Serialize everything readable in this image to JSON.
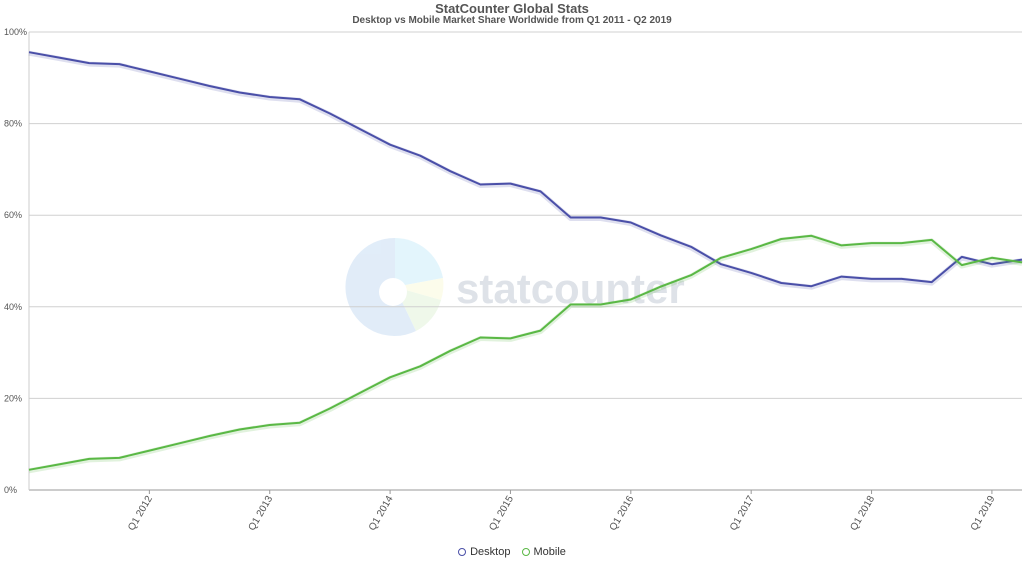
{
  "title": "StatCounter Global Stats",
  "subtitle": "Desktop vs Mobile Market Share Worldwide from Q1 2011 - Q2 2019",
  "watermark_text": "statcounter",
  "chart_data": {
    "type": "line",
    "x": [
      "Q1 2011",
      "Q2 2011",
      "Q3 2011",
      "Q4 2011",
      "Q1 2012",
      "Q2 2012",
      "Q3 2012",
      "Q4 2012",
      "Q1 2013",
      "Q2 2013",
      "Q3 2013",
      "Q4 2013",
      "Q1 2014",
      "Q2 2014",
      "Q3 2014",
      "Q4 2014",
      "Q1 2015",
      "Q2 2015",
      "Q3 2015",
      "Q4 2015",
      "Q1 2016",
      "Q2 2016",
      "Q3 2016",
      "Q4 2016",
      "Q1 2017",
      "Q2 2017",
      "Q3 2017",
      "Q4 2017",
      "Q1 2018",
      "Q2 2018",
      "Q3 2018",
      "Q4 2018",
      "Q1 2019",
      "Q2 2019"
    ],
    "x_tick_labels": [
      "Q1 2012",
      "Q1 2013",
      "Q1 2014",
      "Q1 2015",
      "Q1 2016",
      "Q1 2017",
      "Q1 2018",
      "Q1 2019"
    ],
    "y_tick_labels": [
      "0%",
      "20%",
      "40%",
      "60%",
      "80%",
      "100%"
    ],
    "ylim": [
      0,
      100
    ],
    "grid": true,
    "legend_position": "bottom",
    "series": [
      {
        "name": "Desktop",
        "color": "#4a4fa8",
        "values": [
          95.6,
          94.4,
          93.2,
          93.0,
          91.4,
          89.8,
          88.2,
          86.8,
          85.8,
          85.3,
          82.2,
          78.8,
          75.4,
          73.0,
          69.6,
          66.7,
          66.9,
          65.2,
          59.5,
          59.5,
          58.4,
          55.6,
          53.1,
          49.3,
          47.4,
          45.2,
          44.5,
          46.6,
          46.1,
          46.1,
          45.4,
          50.9,
          49.3,
          50.3
        ]
      },
      {
        "name": "Mobile",
        "color": "#5ab845",
        "values": [
          4.4,
          5.6,
          6.8,
          7.0,
          8.6,
          10.2,
          11.8,
          13.2,
          14.2,
          14.7,
          17.8,
          21.2,
          24.6,
          27.0,
          30.4,
          33.3,
          33.1,
          34.8,
          40.5,
          40.5,
          41.6,
          44.4,
          46.9,
          50.7,
          52.6,
          54.8,
          55.5,
          53.4,
          53.9,
          53.9,
          54.6,
          49.1,
          50.7,
          49.7
        ]
      }
    ]
  }
}
